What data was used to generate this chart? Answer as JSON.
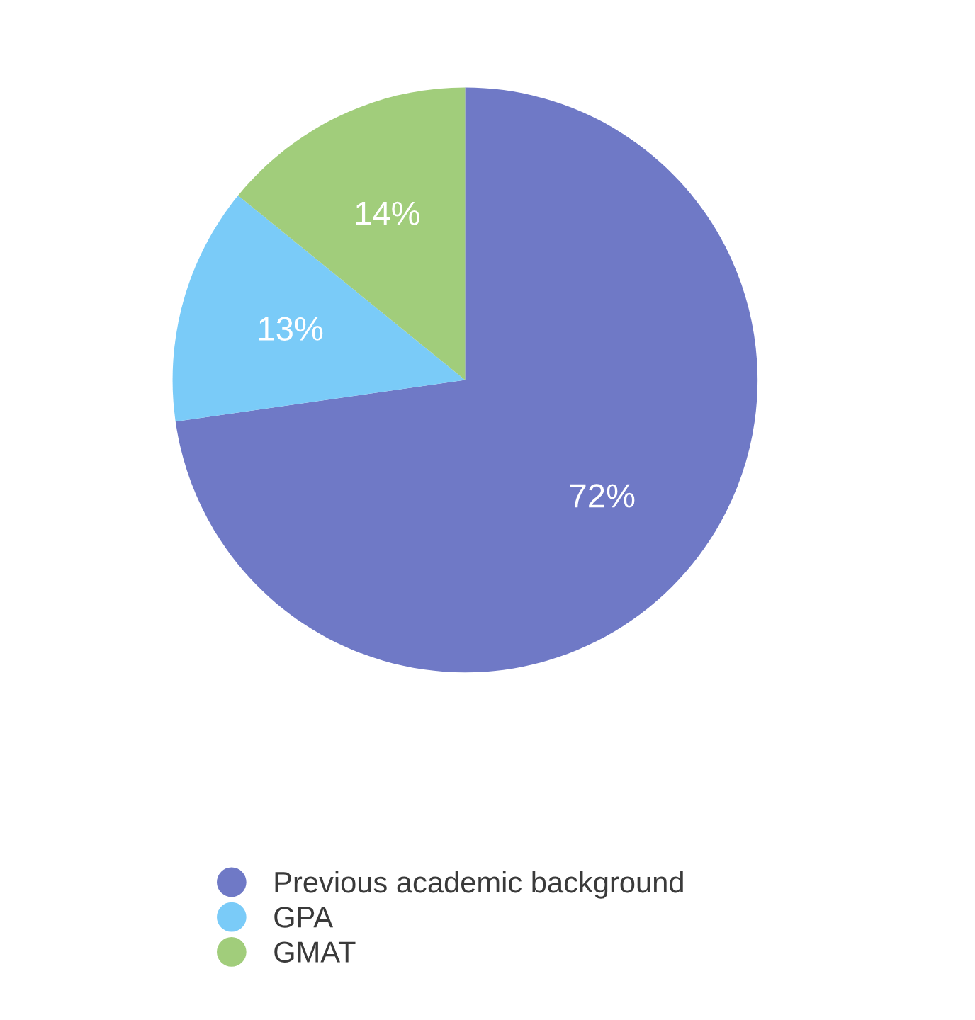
{
  "chart_data": {
    "type": "pie",
    "categories": [
      "Previous academic background",
      "GPA",
      "GMAT"
    ],
    "values": [
      72,
      13,
      14
    ],
    "colors": [
      "#6f79c6",
      "#7acbf8",
      "#a1cd7b"
    ],
    "value_labels": [
      "72%",
      "13%",
      "14%"
    ],
    "legend": "bottom"
  }
}
